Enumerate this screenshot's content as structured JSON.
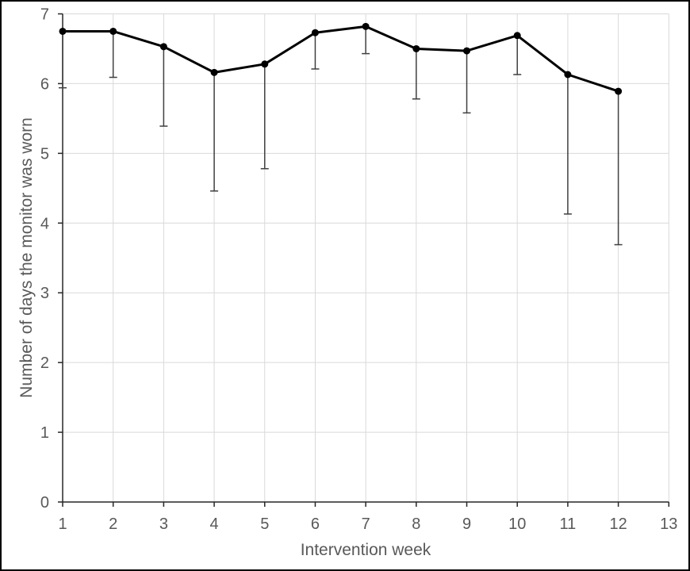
{
  "figure": {
    "background": "#ffffff",
    "border_color": "#000000"
  },
  "chart_data": {
    "type": "line",
    "title": "",
    "xlabel": "Intervention week",
    "ylabel": "Number of days the monitor was worn",
    "x": [
      1,
      2,
      3,
      4,
      5,
      6,
      7,
      8,
      9,
      10,
      11,
      12
    ],
    "series": [
      {
        "name": "mean-days-monitor-worn",
        "values": [
          6.75,
          6.75,
          6.53,
          6.16,
          6.28,
          6.73,
          6.82,
          6.5,
          6.47,
          6.69,
          6.13,
          5.89
        ],
        "error_lower": [
          5.94,
          6.09,
          5.39,
          4.46,
          4.78,
          6.21,
          6.43,
          5.78,
          5.58,
          6.13,
          4.13,
          3.69
        ]
      }
    ],
    "xlim": [
      1,
      13
    ],
    "ylim": [
      0,
      7
    ],
    "x_ticks": [
      1,
      2,
      3,
      4,
      5,
      6,
      7,
      8,
      9,
      10,
      11,
      12,
      13
    ],
    "y_ticks": [
      0,
      1,
      2,
      3,
      4,
      5,
      6,
      7
    ],
    "grid": true,
    "legend": "none",
    "styles": {
      "line_color": "#000000",
      "line_width": 3,
      "marker_color": "#000000",
      "marker_radius": 4.5,
      "error_bar_color": "#404040",
      "error_bar_width": 1.5,
      "error_cap_halfwidth": 5,
      "gridline_color": "#d9d9d9",
      "axis_color": "#262626",
      "label_color": "#595959"
    }
  }
}
